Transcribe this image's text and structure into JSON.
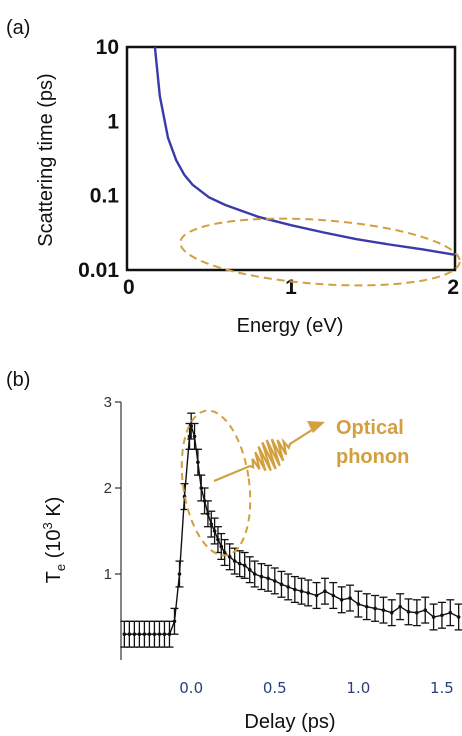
{
  "colors": {
    "curve": "#3a3aaa",
    "annotation": "#d2a040",
    "data": "#111111"
  },
  "chart_data": [
    {
      "panel": "(a)",
      "type": "line",
      "xlabel": "Energy (eV)",
      "ylabel": "Scattering time (ps)",
      "yscale": "log",
      "xlim": [
        0,
        2
      ],
      "ylim": [
        0.01,
        10
      ],
      "xticks": [
        "0",
        "1",
        "2"
      ],
      "yticks": [
        "0.01",
        "0.1",
        "1",
        "10"
      ],
      "grid": false,
      "series": [
        {
          "x": [
            0.17,
            0.2,
            0.25,
            0.3,
            0.35,
            0.4,
            0.5,
            0.6,
            0.8,
            1.0,
            1.2,
            1.4,
            1.6,
            1.8,
            2.0
          ],
          "y": [
            10,
            2.2,
            0.6,
            0.3,
            0.19,
            0.14,
            0.095,
            0.075,
            0.052,
            0.04,
            0.032,
            0.026,
            0.022,
            0.019,
            0.016
          ]
        }
      ]
    },
    {
      "panel": "(b)",
      "type": "scatter",
      "xlabel": "Delay (ps)",
      "ylabel_main": "T",
      "ylabel_sub": "e",
      "ylabel_rest": " (10",
      "ylabel_sup": "3",
      "ylabel_end": " K)",
      "xlim": [
        -0.42,
        1.62
      ],
      "ylim": [
        0,
        3.0
      ],
      "xticks": [
        "0.0",
        "0.5",
        "1.0",
        "1.5"
      ],
      "yticks": [
        "1",
        "2",
        "3"
      ],
      "annotation": [
        "Optical",
        "phonon"
      ],
      "series": [
        {
          "x": [
            -0.4,
            -0.37,
            -0.34,
            -0.31,
            -0.28,
            -0.25,
            -0.22,
            -0.19,
            -0.16,
            -0.13,
            -0.1,
            -0.07,
            -0.04,
            -0.01,
            0.0,
            0.02,
            0.04,
            0.06,
            0.08,
            0.1,
            0.12,
            0.14,
            0.16,
            0.18,
            0.2,
            0.23,
            0.26,
            0.29,
            0.32,
            0.35,
            0.38,
            0.42,
            0.46,
            0.5,
            0.54,
            0.58,
            0.62,
            0.66,
            0.7,
            0.75,
            0.8,
            0.85,
            0.9,
            0.95,
            1.0,
            1.05,
            1.1,
            1.15,
            1.2,
            1.25,
            1.3,
            1.35,
            1.4,
            1.45,
            1.5,
            1.55,
            1.6
          ],
          "y": [
            0.3,
            0.3,
            0.3,
            0.3,
            0.3,
            0.3,
            0.3,
            0.3,
            0.3,
            0.3,
            0.45,
            1.0,
            1.9,
            2.6,
            2.72,
            2.6,
            2.3,
            2.0,
            1.85,
            1.7,
            1.58,
            1.5,
            1.4,
            1.32,
            1.25,
            1.2,
            1.15,
            1.12,
            1.1,
            1.05,
            1.0,
            0.97,
            0.95,
            0.92,
            0.88,
            0.85,
            0.82,
            0.8,
            0.78,
            0.75,
            0.8,
            0.75,
            0.7,
            0.72,
            0.65,
            0.62,
            0.6,
            0.58,
            0.55,
            0.62,
            0.56,
            0.55,
            0.58,
            0.5,
            0.52,
            0.55,
            0.5
          ],
          "yerr": 0.15
        }
      ]
    }
  ]
}
